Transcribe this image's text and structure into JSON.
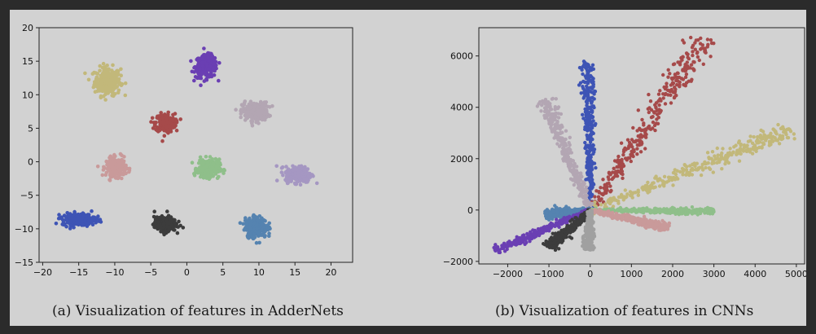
{
  "captions": {
    "left": "(a) Visualization of features in AdderNets",
    "right": "(b) Visualization of features in CNNs"
  },
  "chart_data": [
    {
      "type": "scatter",
      "title": "(a) Visualization of features in AdderNets",
      "xlim": [
        -20.5,
        23
      ],
      "ylim": [
        -15,
        20
      ],
      "xticks": [
        -20,
        -15,
        -10,
        -5,
        0,
        5,
        10,
        15,
        20
      ],
      "yticks": [
        -15,
        -10,
        -5,
        0,
        5,
        10,
        15,
        20
      ],
      "grid": false,
      "clusters": [
        {
          "center": [
            -11,
            12
          ],
          "spread": [
            1.2,
            1.4
          ],
          "color": "#c2b87a"
        },
        {
          "center": [
            2.7,
            14.2
          ],
          "spread": [
            1.0,
            1.1
          ],
          "color": "#6a3fb3"
        },
        {
          "center": [
            -3,
            5.8
          ],
          "spread": [
            0.9,
            0.9
          ],
          "color": "#a64a4a"
        },
        {
          "center": [
            9.5,
            7.5
          ],
          "spread": [
            1.2,
            0.9
          ],
          "color": "#b3a6b3"
        },
        {
          "center": [
            -9.8,
            -0.8
          ],
          "spread": [
            0.9,
            0.9
          ],
          "color": "#c99a9a"
        },
        {
          "center": [
            3,
            -1
          ],
          "spread": [
            1.0,
            0.9
          ],
          "color": "#8fbf8a"
        },
        {
          "center": [
            15.5,
            -1.9
          ],
          "spread": [
            1.2,
            0.8
          ],
          "color": "#a597c2"
        },
        {
          "center": [
            -15,
            -8.6
          ],
          "spread": [
            1.5,
            0.6
          ],
          "color": "#3e54b5"
        },
        {
          "center": [
            -3,
            -9.3
          ],
          "spread": [
            1.0,
            0.7
          ],
          "color": "#3c3c3c"
        },
        {
          "center": [
            9.6,
            -9.8
          ],
          "spread": [
            1.0,
            1.0
          ],
          "color": "#5583b0"
        }
      ]
    },
    {
      "type": "scatter",
      "title": "(b) Visualization of features in CNNs",
      "xlim": [
        -2700,
        5200
      ],
      "ylim": [
        -2100,
        7100
      ],
      "xticks": [
        -2000,
        -1000,
        0,
        1000,
        2000,
        3000,
        4000,
        5000
      ],
      "yticks": [
        -2000,
        0,
        2000,
        4000,
        6000
      ],
      "grid": false,
      "rays": [
        {
          "end": [
            -50,
            5800
          ],
          "width": 90,
          "color": "#3e54b5"
        },
        {
          "end": [
            2800,
            6700
          ],
          "width": 180,
          "color": "#a64a4a"
        },
        {
          "end": [
            4900,
            3100
          ],
          "width": 170,
          "color": "#c2b87a"
        },
        {
          "end": [
            -1100,
            4300
          ],
          "width": 110,
          "color": "#b3a6b3"
        },
        {
          "end": [
            3000,
            -50
          ],
          "width": 70,
          "color": "#8fbf8a"
        },
        {
          "end": [
            1900,
            -700
          ],
          "width": 90,
          "color": "#c99a9a"
        },
        {
          "end": [
            -1100,
            -150
          ],
          "width": 100,
          "color": "#5583b0"
        },
        {
          "end": [
            -2300,
            -1600
          ],
          "width": 80,
          "color": "#6a3fb3"
        },
        {
          "end": [
            -1000,
            -1450
          ],
          "width": 90,
          "color": "#3c3c3c"
        },
        {
          "end": [
            -50,
            -1550
          ],
          "width": 70,
          "color": "#a0a0a0"
        }
      ]
    }
  ]
}
